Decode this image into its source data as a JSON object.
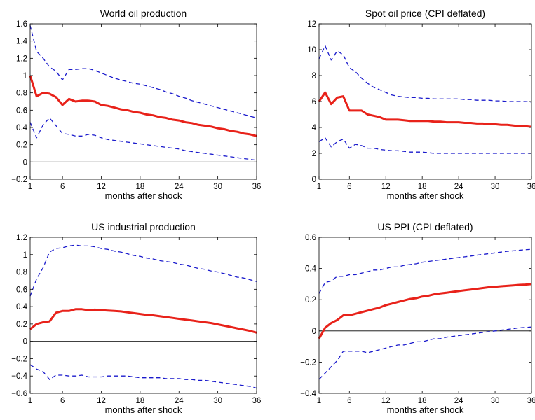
{
  "chart_data": [
    {
      "type": "line",
      "title": "World oil production",
      "xlabel": "months after shock",
      "ylabel": "",
      "xlim": [
        1,
        36
      ],
      "ylim": [
        -0.2,
        1.6
      ],
      "xticks": [
        1,
        6,
        12,
        18,
        24,
        30,
        36
      ],
      "yticks": [
        -0.2,
        0,
        0.2,
        0.4,
        0.6,
        0.8,
        1,
        1.2,
        1.4,
        1.6
      ],
      "ytick_labels": [
        "−0.2",
        "0",
        "0.2",
        "0.4",
        "0.6",
        "0.8",
        "1",
        "1.2",
        "1.4",
        "1.6"
      ],
      "zero_line": true,
      "x": [
        1,
        2,
        3,
        4,
        5,
        6,
        7,
        8,
        9,
        10,
        11,
        12,
        13,
        14,
        15,
        16,
        17,
        18,
        19,
        20,
        21,
        22,
        23,
        24,
        25,
        26,
        27,
        28,
        29,
        30,
        31,
        32,
        33,
        34,
        35,
        36
      ],
      "series": [
        {
          "role": "response",
          "color": "#e8221a",
          "style": "solid",
          "values": [
            1.0,
            0.76,
            0.8,
            0.79,
            0.75,
            0.66,
            0.73,
            0.7,
            0.71,
            0.71,
            0.7,
            0.66,
            0.65,
            0.63,
            0.61,
            0.6,
            0.58,
            0.57,
            0.55,
            0.54,
            0.52,
            0.51,
            0.49,
            0.48,
            0.46,
            0.45,
            0.43,
            0.42,
            0.41,
            0.39,
            0.38,
            0.36,
            0.35,
            0.33,
            0.32,
            0.3
          ]
        },
        {
          "role": "upper-band",
          "color": "#1a1acc",
          "style": "dashed",
          "values": [
            1.58,
            1.28,
            1.2,
            1.1,
            1.05,
            0.95,
            1.07,
            1.07,
            1.08,
            1.08,
            1.06,
            1.03,
            1.0,
            0.97,
            0.95,
            0.93,
            0.91,
            0.9,
            0.88,
            0.86,
            0.84,
            0.81,
            0.79,
            0.76,
            0.74,
            0.71,
            0.69,
            0.67,
            0.65,
            0.63,
            0.61,
            0.59,
            0.57,
            0.55,
            0.53,
            0.51
          ]
        },
        {
          "role": "lower-band",
          "color": "#1a1acc",
          "style": "dashed",
          "values": [
            0.46,
            0.28,
            0.43,
            0.51,
            0.42,
            0.33,
            0.32,
            0.3,
            0.3,
            0.32,
            0.31,
            0.28,
            0.26,
            0.25,
            0.24,
            0.23,
            0.22,
            0.21,
            0.2,
            0.19,
            0.18,
            0.17,
            0.16,
            0.15,
            0.13,
            0.12,
            0.11,
            0.1,
            0.09,
            0.08,
            0.07,
            0.06,
            0.05,
            0.04,
            0.03,
            0.02
          ]
        }
      ]
    },
    {
      "type": "line",
      "title": "Spot oil price (CPI deflated)",
      "xlabel": "months after shock",
      "ylabel": "",
      "xlim": [
        1,
        36
      ],
      "ylim": [
        0,
        12
      ],
      "xticks": [
        1,
        6,
        12,
        18,
        24,
        30,
        36
      ],
      "yticks": [
        0,
        2,
        4,
        6,
        8,
        10,
        12
      ],
      "ytick_labels": [
        "0",
        "2",
        "4",
        "6",
        "8",
        "10",
        "12"
      ],
      "zero_line": false,
      "x": [
        1,
        2,
        3,
        4,
        5,
        6,
        7,
        8,
        9,
        10,
        11,
        12,
        13,
        14,
        15,
        16,
        17,
        18,
        19,
        20,
        21,
        22,
        23,
        24,
        25,
        26,
        27,
        28,
        29,
        30,
        31,
        32,
        33,
        34,
        35,
        36
      ],
      "series": [
        {
          "role": "response",
          "color": "#e8221a",
          "style": "solid",
          "values": [
            6.0,
            6.7,
            5.8,
            6.3,
            6.4,
            5.3,
            5.3,
            5.3,
            5.0,
            4.9,
            4.8,
            4.6,
            4.6,
            4.6,
            4.55,
            4.5,
            4.5,
            4.5,
            4.5,
            4.45,
            4.45,
            4.4,
            4.4,
            4.4,
            4.35,
            4.35,
            4.3,
            4.3,
            4.25,
            4.25,
            4.2,
            4.2,
            4.15,
            4.1,
            4.1,
            4.05
          ]
        },
        {
          "role": "upper-band",
          "color": "#1a1acc",
          "style": "dashed",
          "values": [
            9.3,
            10.3,
            9.2,
            9.9,
            9.6,
            8.6,
            8.3,
            7.8,
            7.4,
            7.1,
            6.9,
            6.7,
            6.5,
            6.4,
            6.35,
            6.3,
            6.3,
            6.25,
            6.25,
            6.2,
            6.2,
            6.2,
            6.2,
            6.2,
            6.15,
            6.15,
            6.1,
            6.1,
            6.1,
            6.05,
            6.05,
            6.0,
            6.0,
            6.0,
            6.0,
            5.95
          ]
        },
        {
          "role": "lower-band",
          "color": "#1a1acc",
          "style": "dashed",
          "values": [
            2.9,
            3.2,
            2.5,
            2.9,
            3.1,
            2.4,
            2.7,
            2.6,
            2.4,
            2.4,
            2.3,
            2.25,
            2.2,
            2.2,
            2.15,
            2.1,
            2.1,
            2.1,
            2.05,
            2.0,
            2.0,
            2.0,
            2.0,
            2.0,
            2.0,
            2.0,
            2.0,
            2.0,
            2.0,
            2.0,
            2.0,
            2.0,
            2.0,
            2.0,
            2.0,
            2.0
          ]
        }
      ]
    },
    {
      "type": "line",
      "title": "US industrial production",
      "xlabel": "months after shock",
      "ylabel": "",
      "xlim": [
        1,
        36
      ],
      "ylim": [
        -0.6,
        1.2
      ],
      "xticks": [
        1,
        6,
        12,
        18,
        24,
        30,
        36
      ],
      "yticks": [
        -0.6,
        -0.4,
        -0.2,
        0,
        0.2,
        0.4,
        0.6,
        0.8,
        1,
        1.2
      ],
      "ytick_labels": [
        "−0.6",
        "−0.4",
        "−0.2",
        "0",
        "0.2",
        "0.4",
        "0.6",
        "0.8",
        "1",
        "1.2"
      ],
      "zero_line": true,
      "x": [
        1,
        2,
        3,
        4,
        5,
        6,
        7,
        8,
        9,
        10,
        11,
        12,
        13,
        14,
        15,
        16,
        17,
        18,
        19,
        20,
        21,
        22,
        23,
        24,
        25,
        26,
        27,
        28,
        29,
        30,
        31,
        32,
        33,
        34,
        35,
        36
      ],
      "series": [
        {
          "role": "response",
          "color": "#e8221a",
          "style": "solid",
          "values": [
            0.14,
            0.2,
            0.22,
            0.23,
            0.33,
            0.35,
            0.35,
            0.37,
            0.37,
            0.36,
            0.365,
            0.36,
            0.355,
            0.35,
            0.345,
            0.335,
            0.325,
            0.315,
            0.305,
            0.3,
            0.29,
            0.28,
            0.27,
            0.26,
            0.25,
            0.24,
            0.23,
            0.22,
            0.21,
            0.195,
            0.18,
            0.165,
            0.15,
            0.135,
            0.12,
            0.1
          ]
        },
        {
          "role": "upper-band",
          "color": "#1a1acc",
          "style": "dashed",
          "values": [
            0.52,
            0.72,
            0.85,
            1.03,
            1.07,
            1.08,
            1.1,
            1.11,
            1.1,
            1.1,
            1.09,
            1.07,
            1.06,
            1.04,
            1.03,
            1.01,
            0.99,
            0.98,
            0.96,
            0.95,
            0.93,
            0.92,
            0.91,
            0.89,
            0.88,
            0.86,
            0.84,
            0.83,
            0.81,
            0.8,
            0.78,
            0.76,
            0.74,
            0.73,
            0.71,
            0.69
          ]
        },
        {
          "role": "lower-band",
          "color": "#1a1acc",
          "style": "dashed",
          "values": [
            -0.27,
            -0.32,
            -0.35,
            -0.44,
            -0.39,
            -0.39,
            -0.4,
            -0.4,
            -0.39,
            -0.41,
            -0.41,
            -0.41,
            -0.4,
            -0.4,
            -0.4,
            -0.4,
            -0.41,
            -0.42,
            -0.42,
            -0.42,
            -0.42,
            -0.43,
            -0.43,
            -0.43,
            -0.44,
            -0.44,
            -0.45,
            -0.45,
            -0.46,
            -0.47,
            -0.48,
            -0.49,
            -0.5,
            -0.51,
            -0.52,
            -0.54
          ]
        }
      ]
    },
    {
      "type": "line",
      "title": "US PPI (CPI deflated)",
      "xlabel": "months after shock",
      "ylabel": "",
      "xlim": [
        1,
        36
      ],
      "ylim": [
        -0.4,
        0.6
      ],
      "xticks": [
        1,
        6,
        12,
        18,
        24,
        30,
        36
      ],
      "yticks": [
        -0.4,
        -0.2,
        0,
        0.2,
        0.4,
        0.6
      ],
      "ytick_labels": [
        "−0.4",
        "−0.2",
        "0",
        "0.2",
        "0.4",
        "0.6"
      ],
      "zero_line": true,
      "x": [
        1,
        2,
        3,
        4,
        5,
        6,
        7,
        8,
        9,
        10,
        11,
        12,
        13,
        14,
        15,
        16,
        17,
        18,
        19,
        20,
        21,
        22,
        23,
        24,
        25,
        26,
        27,
        28,
        29,
        30,
        31,
        32,
        33,
        34,
        35,
        36
      ],
      "series": [
        {
          "role": "response",
          "color": "#e8221a",
          "style": "solid",
          "values": [
            -0.05,
            0.02,
            0.05,
            0.07,
            0.1,
            0.1,
            0.11,
            0.12,
            0.13,
            0.14,
            0.15,
            0.165,
            0.175,
            0.185,
            0.195,
            0.205,
            0.21,
            0.22,
            0.225,
            0.235,
            0.24,
            0.245,
            0.25,
            0.255,
            0.26,
            0.265,
            0.27,
            0.275,
            0.28,
            0.283,
            0.286,
            0.289,
            0.292,
            0.295,
            0.297,
            0.3
          ]
        },
        {
          "role": "upper-band",
          "color": "#1a1acc",
          "style": "dashed",
          "values": [
            0.24,
            0.31,
            0.32,
            0.35,
            0.35,
            0.36,
            0.36,
            0.37,
            0.38,
            0.39,
            0.39,
            0.4,
            0.41,
            0.41,
            0.42,
            0.425,
            0.43,
            0.44,
            0.445,
            0.45,
            0.455,
            0.46,
            0.465,
            0.47,
            0.475,
            0.48,
            0.485,
            0.49,
            0.495,
            0.5,
            0.505,
            0.51,
            0.513,
            0.517,
            0.52,
            0.523
          ]
        },
        {
          "role": "lower-band",
          "color": "#1a1acc",
          "style": "dashed",
          "values": [
            -0.31,
            -0.27,
            -0.23,
            -0.19,
            -0.13,
            -0.13,
            -0.13,
            -0.13,
            -0.14,
            -0.13,
            -0.12,
            -0.11,
            -0.1,
            -0.09,
            -0.09,
            -0.08,
            -0.07,
            -0.07,
            -0.06,
            -0.05,
            -0.05,
            -0.04,
            -0.035,
            -0.03,
            -0.025,
            -0.02,
            -0.015,
            -0.01,
            -0.005,
            0.0,
            0.005,
            0.01,
            0.015,
            0.02,
            0.022,
            0.025
          ]
        }
      ]
    }
  ]
}
